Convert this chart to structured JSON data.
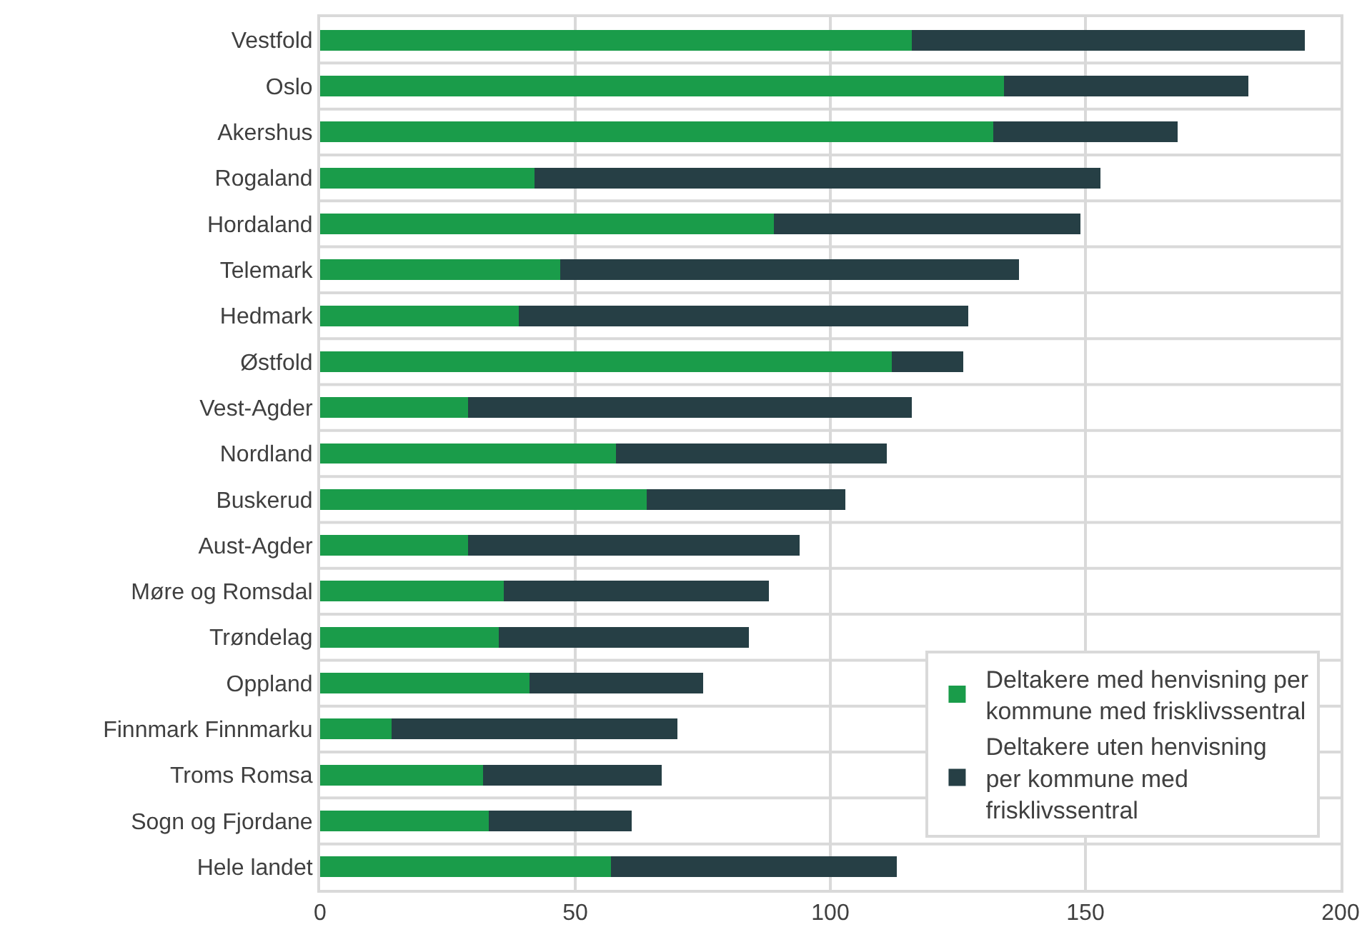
{
  "chart_data": {
    "type": "bar",
    "orientation": "horizontal",
    "stacked": true,
    "categories": [
      "Vestfold",
      "Oslo",
      "Akershus",
      "Rogaland",
      "Hordaland",
      "Telemark",
      "Hedmark",
      "Østfold",
      "Vest-Agder",
      "Nordland",
      "Buskerud",
      "Aust-Agder",
      "Møre og Romsdal",
      "Trøndelag",
      "Oppland",
      "Finnmark Finnmarku",
      "Troms Romsa",
      "Sogn og Fjordane",
      "Hele landet"
    ],
    "series": [
      {
        "name": "Deltakere med henvisning per kommune med frisklivssentral",
        "color": "#1a9c4a",
        "values": [
          116,
          134,
          132,
          42,
          89,
          47,
          39,
          112,
          29,
          58,
          64,
          29,
          36,
          35,
          41,
          14,
          32,
          33,
          57
        ]
      },
      {
        "name": "Deltakere uten henvisning per kommune med frisklivssentral",
        "color": "#263f45",
        "values": [
          77,
          48,
          36,
          111,
          60,
          90,
          88,
          14,
          87,
          53,
          39,
          65,
          52,
          49,
          34,
          56,
          35,
          28,
          56
        ]
      }
    ],
    "xlim": [
      0,
      200
    ],
    "xticks": [
      0,
      50,
      100,
      150,
      200
    ],
    "grid": true,
    "legend": "bottom right"
  }
}
